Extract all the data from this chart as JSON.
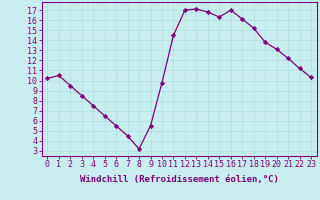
{
  "x": [
    0,
    1,
    2,
    3,
    4,
    5,
    6,
    7,
    8,
    9,
    10,
    11,
    12,
    13,
    14,
    15,
    16,
    17,
    18,
    19,
    20,
    21,
    22,
    23
  ],
  "y": [
    10.2,
    10.5,
    9.5,
    8.5,
    7.5,
    6.5,
    5.5,
    4.5,
    3.2,
    5.5,
    9.8,
    14.5,
    17.0,
    17.1,
    16.8,
    16.3,
    17.0,
    16.1,
    15.2,
    13.8,
    13.1,
    12.2,
    11.2,
    10.3
  ],
  "line_color": "#800080",
  "marker": "D",
  "marker_size": 2.2,
  "background_color": "#c8eef0",
  "grid_color": "#b0dde0",
  "xlabel": "Windchill (Refroidissement éolien,°C)",
  "xlabel_fontsize": 6.5,
  "ylabel_ticks": [
    3,
    4,
    5,
    6,
    7,
    8,
    9,
    10,
    11,
    12,
    13,
    14,
    15,
    16,
    17
  ],
  "xlim": [
    -0.5,
    23.5
  ],
  "ylim": [
    2.5,
    17.8
  ],
  "tick_fontsize": 6.0,
  "spine_color": "#800080",
  "grid_linewidth": 0.5
}
